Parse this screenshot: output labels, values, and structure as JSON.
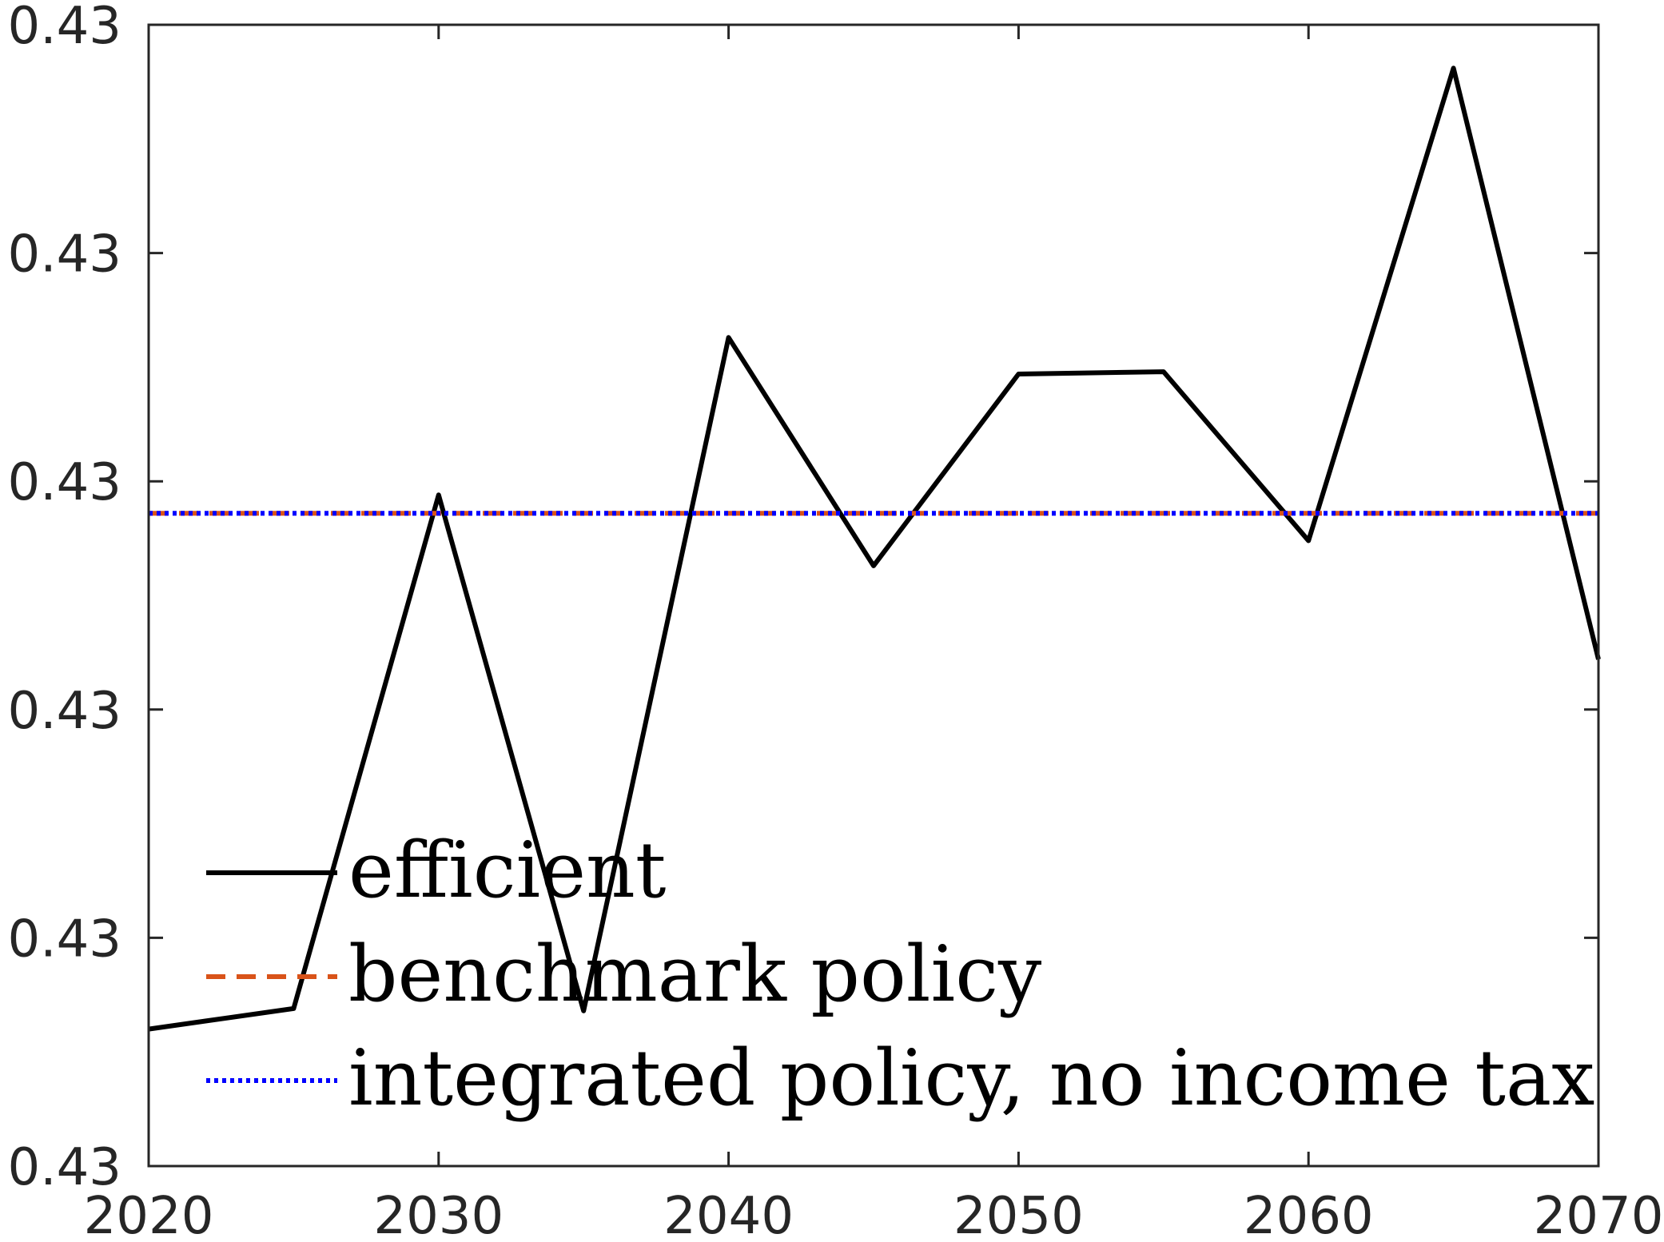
{
  "chart_data": {
    "type": "line",
    "title": "",
    "xlabel": "",
    "ylabel": "",
    "xlim": [
      2020,
      2070
    ],
    "ylim": [
      0.4296,
      0.4301
    ],
    "grid": false,
    "x": [
      2020,
      2025,
      2030,
      2035,
      2040,
      2045,
      2050,
      2055,
      2060,
      2065,
      2070
    ],
    "x_tick_values": [
      2020,
      2030,
      2040,
      2050,
      2060,
      2070
    ],
    "x_tick_labels": [
      "2020",
      "2030",
      "2040",
      "2050",
      "2060",
      "2070"
    ],
    "y_tick_values": [
      0.4296,
      0.4297,
      0.4298,
      0.4299,
      0.43,
      0.4301
    ],
    "y_tick_labels": [
      "0.43",
      "0.43",
      "0.43",
      "0.43",
      "0.43",
      "0.43"
    ],
    "legend_position": "bottom-left",
    "series": [
      {
        "name": "efficient",
        "style": "solid",
        "color": "#000000",
        "values": [
          0.42966,
          0.429669,
          0.429894,
          0.429668,
          0.429963,
          0.429863,
          0.429947,
          0.429948,
          0.429874,
          0.430081,
          0.429822
        ]
      },
      {
        "name": "benchmark policy",
        "style": "dashed",
        "color": "#D95319",
        "values": [
          0.429886,
          0.429886,
          0.429886,
          0.429886,
          0.429886,
          0.429886,
          0.429886,
          0.429886,
          0.429886,
          0.429886,
          0.429886
        ]
      },
      {
        "name": "integrated policy, no income tax",
        "style": "dotted",
        "color": "#0000FF",
        "values": [
          0.429886,
          0.429886,
          0.429886,
          0.429886,
          0.429886,
          0.429886,
          0.429886,
          0.429886,
          0.429886,
          0.429886,
          0.429886
        ]
      }
    ]
  }
}
